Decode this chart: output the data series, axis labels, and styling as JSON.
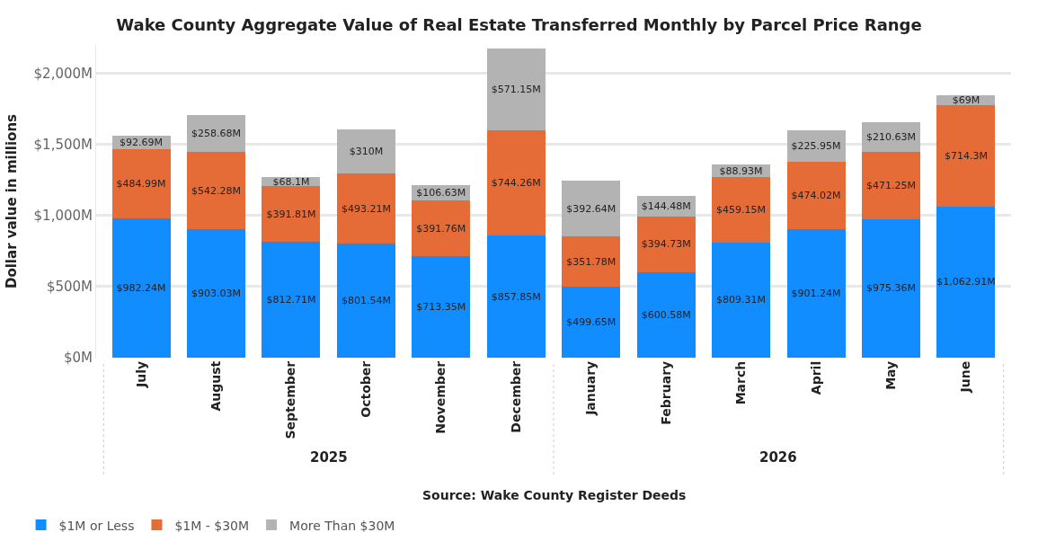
{
  "chart_data": {
    "type": "bar",
    "stacked": true,
    "title": "Wake County Aggregate Value of Real Estate Transferred Monthly by Parcel Price Range",
    "xlabel": "Source: Wake County Register Deeds",
    "ylabel": "Dollar value in millions",
    "categories": [
      "July",
      "August",
      "September",
      "October",
      "November",
      "December",
      "January",
      "February",
      "March",
      "April",
      "May",
      "June"
    ],
    "annotations": [
      "2025",
      "2026"
    ],
    "series": [
      {
        "name": "$1M or Less",
        "color": "#118dff",
        "values": [
          982.24,
          903.03,
          812.71,
          801.54,
          713.35,
          857.85,
          499.65,
          600.58,
          809.31,
          901.24,
          975.36,
          1062.91
        ],
        "value_labels": [
          "$982.24M",
          "$903.03M",
          "$812.71M",
          "$801.54M",
          "$713.35M",
          "$857.85M",
          "$499.65M",
          "$600.58M",
          "$809.31M",
          "$901.24M",
          "$975.36M",
          "$1,062.91M"
        ]
      },
      {
        "name": "$1M - $30M",
        "color": "#e66c37",
        "values": [
          484.99,
          542.28,
          391.81,
          493.21,
          391.76,
          744.26,
          351.78,
          394.73,
          459.15,
          474.02,
          471.25,
          714.3
        ],
        "value_labels": [
          "$484.99M",
          "$542.28M",
          "$391.81M",
          "$493.21M",
          "$391.76M",
          "$744.26M",
          "$351.78M",
          "$394.73M",
          "$459.15M",
          "$474.02M",
          "$471.25M",
          "$714.3M"
        ]
      },
      {
        "name": "More Than $30M",
        "color": "#b3b3b3",
        "values": [
          92.69,
          258.68,
          68.1,
          310,
          106.63,
          571.15,
          392.64,
          144.48,
          88.93,
          225.95,
          210.63,
          69
        ],
        "value_labels": [
          "$92.69M",
          "$258.68M",
          "$68.1M",
          "$310M",
          "$106.63M",
          "$571.15M",
          "$392.64M",
          "$144.48M",
          "$88.93M",
          "$225.95M",
          "$210.63M",
          "$69M"
        ]
      }
    ],
    "ylim": [
      0,
      2200
    ],
    "yticks": [
      {
        "value": 0,
        "label": "$0M"
      },
      {
        "value": 500,
        "label": "$500M"
      },
      {
        "value": 1000,
        "label": "$1,000M"
      },
      {
        "value": 1500,
        "label": "$1,500M"
      },
      {
        "value": 2000,
        "label": "$2,000M"
      }
    ],
    "grid": "y",
    "legend": "bottom left"
  }
}
